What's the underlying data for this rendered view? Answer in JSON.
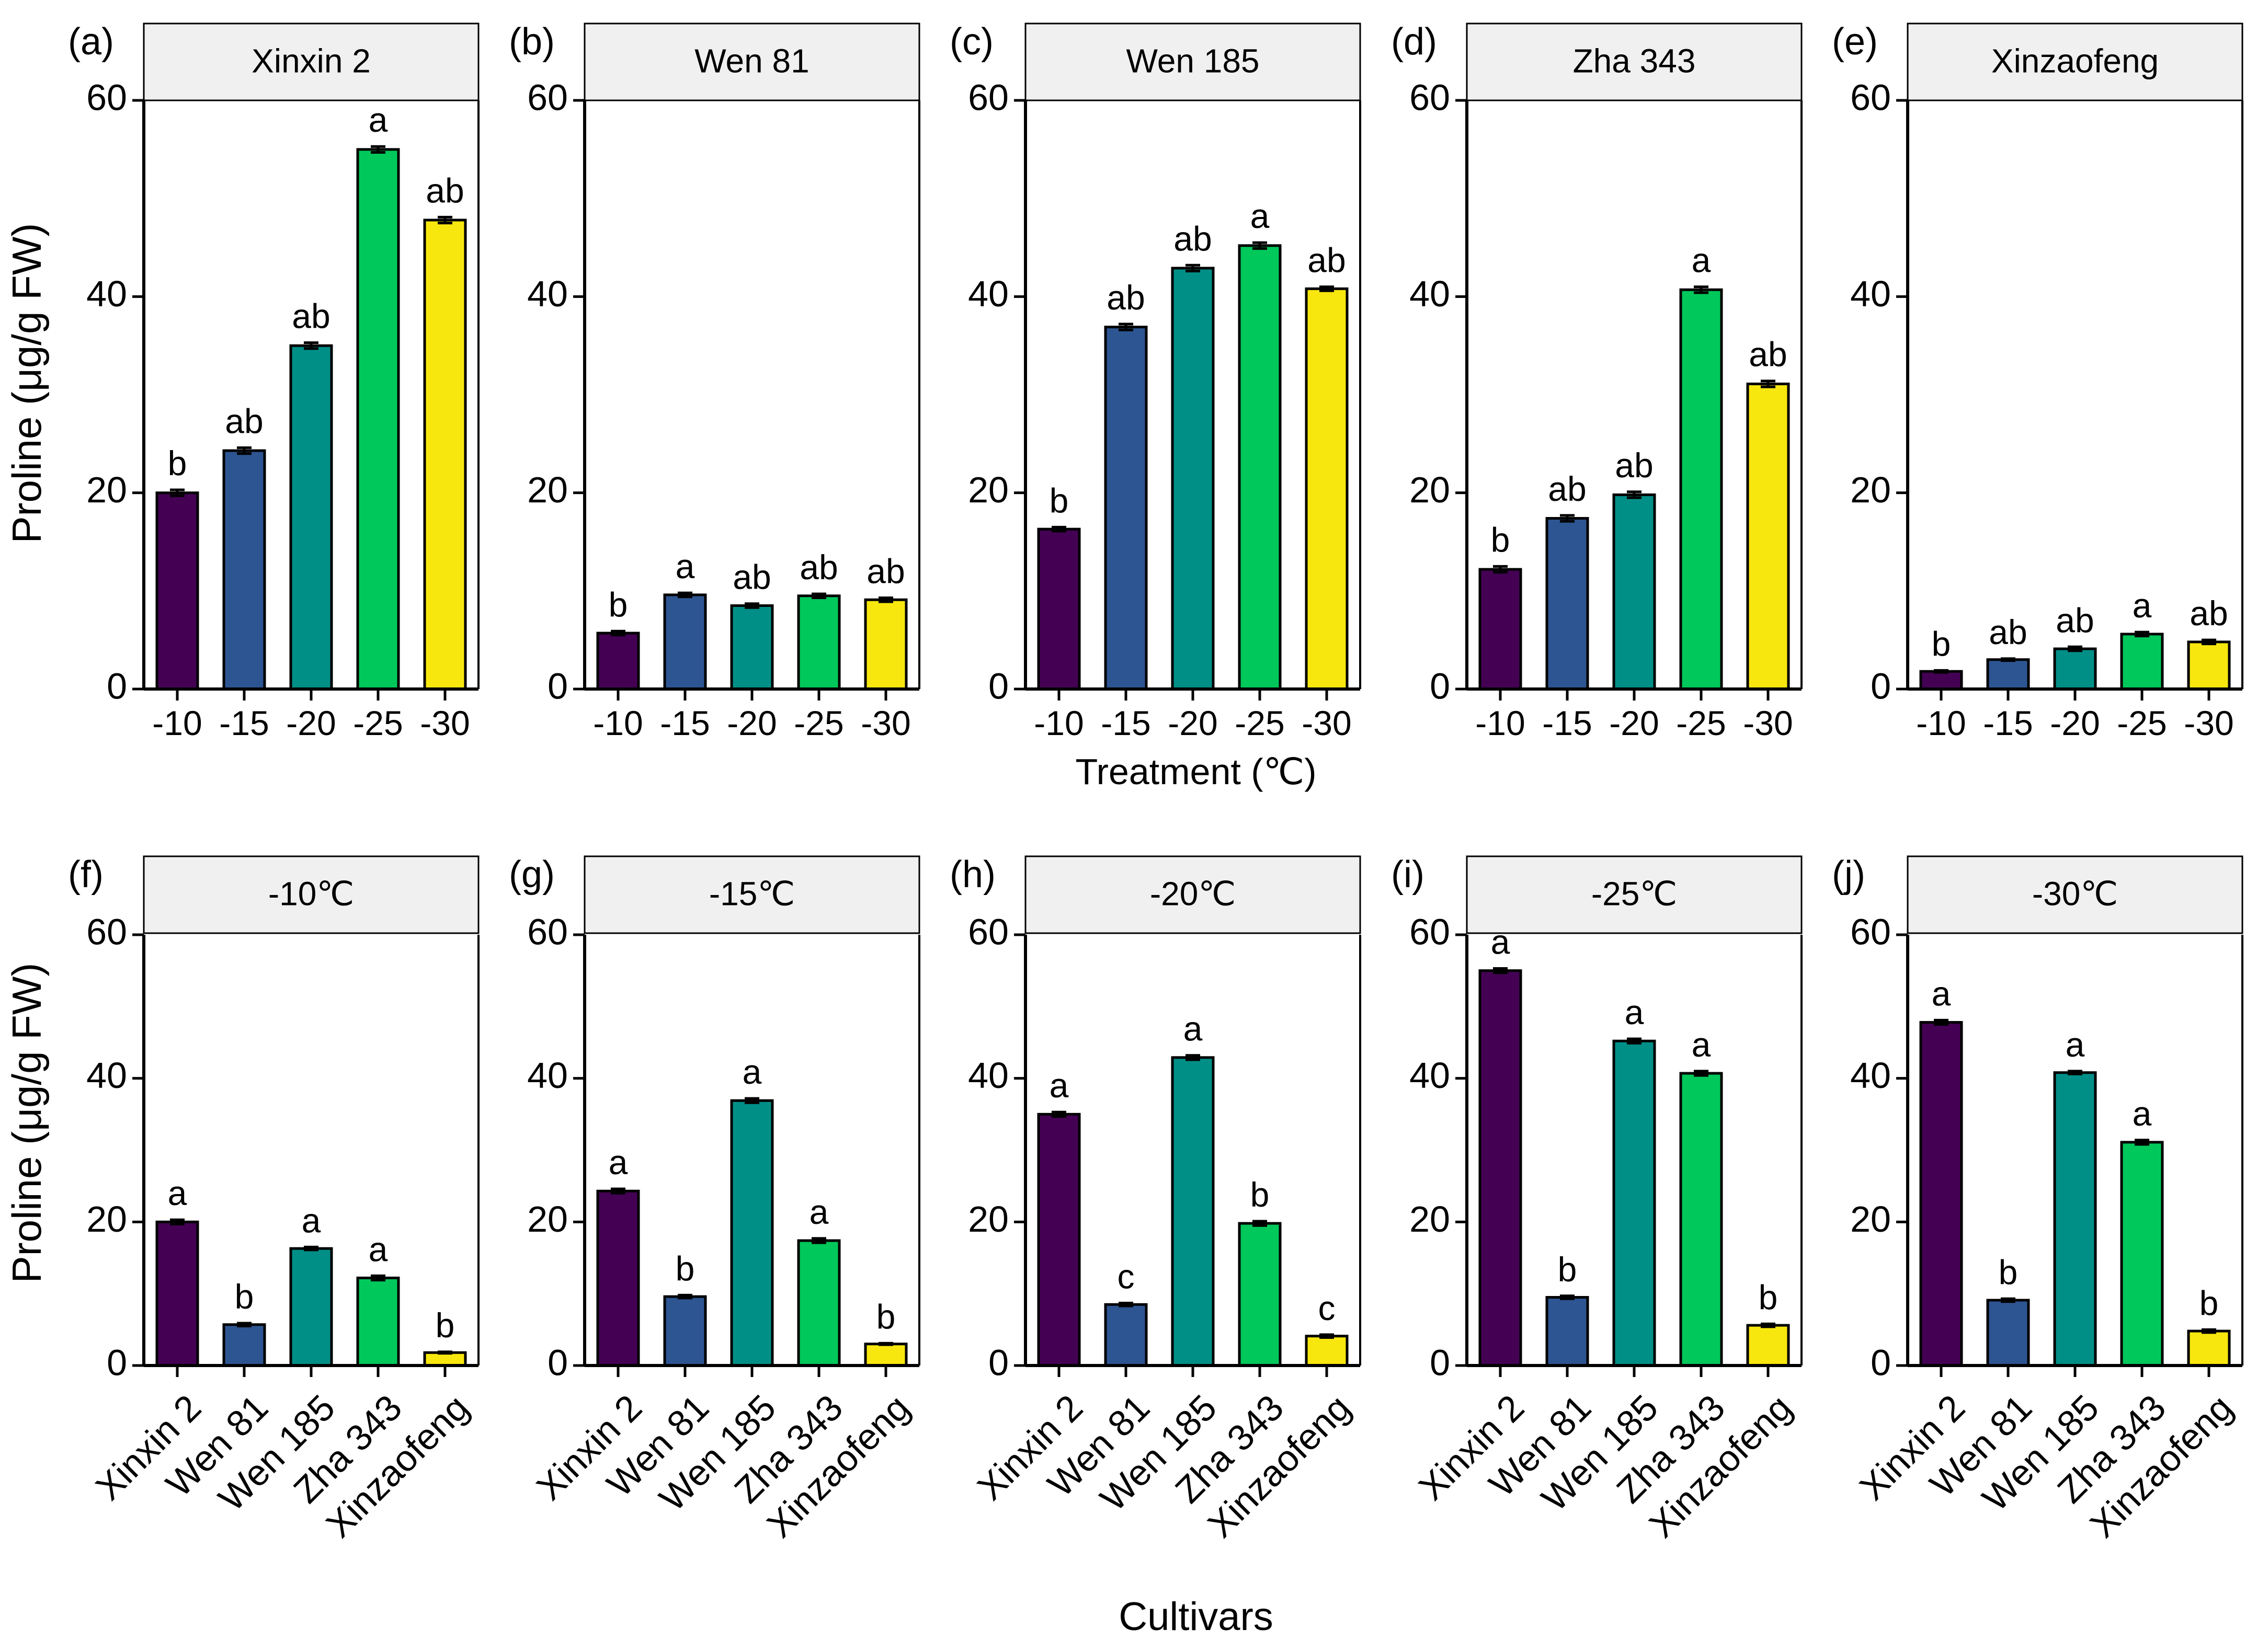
{
  "figure": {
    "top_row_xlabel": "Treatment (℃)",
    "bottom_row_xlabel": "Cultivars",
    "ylabel": "Proline (μg/g FW)"
  },
  "colors": {
    "palette": [
      "#440154",
      "#2d5592",
      "#008f87",
      "#00c85a",
      "#f8e70e"
    ],
    "strip_fill": "#f0f0f0",
    "axis": "#000000"
  },
  "chart_data": [
    {
      "type": "bar",
      "label": "(a)",
      "strip": "Xinxin 2",
      "categories": [
        "-10",
        "-15",
        "-20",
        "-25",
        "-30"
      ],
      "values": [
        20.0,
        24.3,
        35.0,
        55.0,
        47.8
      ],
      "errors": [
        0.3,
        0.3,
        0.3,
        0.3,
        0.3
      ],
      "letters": [
        "b",
        "ab",
        "ab",
        "a",
        "ab"
      ],
      "ylim": [
        0,
        60
      ],
      "yticks": [
        0,
        20,
        40,
        60
      ],
      "xlabel": "",
      "ylabel": "Proline (μg/g FW)"
    },
    {
      "type": "bar",
      "label": "(b)",
      "strip": "Wen 81",
      "categories": [
        "-10",
        "-15",
        "-20",
        "-25",
        "-30"
      ],
      "values": [
        5.7,
        9.6,
        8.5,
        9.5,
        9.1
      ],
      "errors": [
        0.2,
        0.2,
        0.2,
        0.2,
        0.2
      ],
      "letters": [
        "b",
        "a",
        "ab",
        "ab",
        "ab"
      ],
      "ylim": [
        0,
        60
      ],
      "yticks": [
        0,
        20,
        40,
        60
      ],
      "xlabel": "",
      "ylabel": ""
    },
    {
      "type": "bar",
      "label": "(c)",
      "strip": "Wen 185",
      "categories": [
        "-10",
        "-15",
        "-20",
        "-25",
        "-30"
      ],
      "values": [
        16.3,
        36.9,
        42.9,
        45.2,
        40.8
      ],
      "errors": [
        0.2,
        0.3,
        0.3,
        0.3,
        0.2
      ],
      "letters": [
        "b",
        "ab",
        "ab",
        "a",
        "ab"
      ],
      "ylim": [
        0,
        60
      ],
      "yticks": [
        0,
        20,
        40,
        60
      ],
      "xlabel": "Treatment (℃)",
      "ylabel": ""
    },
    {
      "type": "bar",
      "label": "(d)",
      "strip": "Zha 343",
      "categories": [
        "-10",
        "-15",
        "-20",
        "-25",
        "-30"
      ],
      "values": [
        12.2,
        17.4,
        19.8,
        40.7,
        31.1
      ],
      "errors": [
        0.3,
        0.3,
        0.3,
        0.3,
        0.3
      ],
      "letters": [
        "b",
        "ab",
        "ab",
        "a",
        "ab"
      ],
      "ylim": [
        0,
        60
      ],
      "yticks": [
        0,
        20,
        40,
        60
      ],
      "xlabel": "",
      "ylabel": ""
    },
    {
      "type": "bar",
      "label": "(e)",
      "strip": "Xinzaofeng",
      "categories": [
        "-10",
        "-15",
        "-20",
        "-25",
        "-30"
      ],
      "values": [
        1.8,
        3.0,
        4.1,
        5.6,
        4.8
      ],
      "errors": [
        0.1,
        0.1,
        0.2,
        0.2,
        0.2
      ],
      "letters": [
        "b",
        "ab",
        "ab",
        "a",
        "ab"
      ],
      "ylim": [
        0,
        60
      ],
      "yticks": [
        0,
        20,
        40,
        60
      ],
      "xlabel": "",
      "ylabel": ""
    },
    {
      "type": "bar",
      "label": "(f)",
      "strip": "-10℃",
      "categories": [
        "Xinxin 2",
        "Wen 81",
        "Wen 185",
        "Zha 343",
        "Xinzaofeng"
      ],
      "values": [
        20.0,
        5.7,
        16.3,
        12.2,
        1.8
      ],
      "errors": [
        0.3,
        0.2,
        0.2,
        0.3,
        0.1
      ],
      "letters": [
        "a",
        "b",
        "a",
        "a",
        "b"
      ],
      "ylim": [
        0,
        60
      ],
      "yticks": [
        0,
        20,
        40,
        60
      ],
      "xlabel": "",
      "ylabel": "Proline (μg/g FW)"
    },
    {
      "type": "bar",
      "label": "(g)",
      "strip": "-15℃",
      "categories": [
        "Xinxin 2",
        "Wen 81",
        "Wen 185",
        "Zha 343",
        "Xinzaofeng"
      ],
      "values": [
        24.3,
        9.6,
        36.9,
        17.4,
        3.0
      ],
      "errors": [
        0.3,
        0.2,
        0.3,
        0.3,
        0.1
      ],
      "letters": [
        "a",
        "b",
        "a",
        "a",
        "b"
      ],
      "ylim": [
        0,
        60
      ],
      "yticks": [
        0,
        20,
        40,
        60
      ],
      "xlabel": "",
      "ylabel": ""
    },
    {
      "type": "bar",
      "label": "(h)",
      "strip": "-20℃",
      "categories": [
        "Xinxin 2",
        "Wen 81",
        "Wen 185",
        "Zha 343",
        "Xinzaofeng"
      ],
      "values": [
        35.0,
        8.5,
        42.9,
        19.8,
        4.1
      ],
      "errors": [
        0.3,
        0.2,
        0.3,
        0.3,
        0.2
      ],
      "letters": [
        "a",
        "c",
        "a",
        "b",
        "c"
      ],
      "ylim": [
        0,
        60
      ],
      "yticks": [
        0,
        20,
        40,
        60
      ],
      "xlabel": "Cultivars",
      "ylabel": ""
    },
    {
      "type": "bar",
      "label": "(i)",
      "strip": "-25℃",
      "categories": [
        "Xinxin 2",
        "Wen 81",
        "Wen 185",
        "Zha 343",
        "Xinzaofeng"
      ],
      "values": [
        55.0,
        9.5,
        45.2,
        40.7,
        5.6
      ],
      "errors": [
        0.3,
        0.2,
        0.3,
        0.3,
        0.2
      ],
      "letters": [
        "a",
        "b",
        "a",
        "a",
        "b"
      ],
      "ylim": [
        0,
        60
      ],
      "yticks": [
        0,
        20,
        40,
        60
      ],
      "xlabel": "",
      "ylabel": ""
    },
    {
      "type": "bar",
      "label": "(j)",
      "strip": "-30℃",
      "categories": [
        "Xinxin 2",
        "Wen 81",
        "Wen 185",
        "Zha 343",
        "Xinzaofeng"
      ],
      "values": [
        47.8,
        9.1,
        40.8,
        31.1,
        4.8
      ],
      "errors": [
        0.3,
        0.2,
        0.2,
        0.3,
        0.2
      ],
      "letters": [
        "a",
        "b",
        "a",
        "a",
        "b"
      ],
      "ylim": [
        0,
        60
      ],
      "yticks": [
        0,
        20,
        40,
        60
      ],
      "xlabel": "",
      "ylabel": ""
    }
  ]
}
